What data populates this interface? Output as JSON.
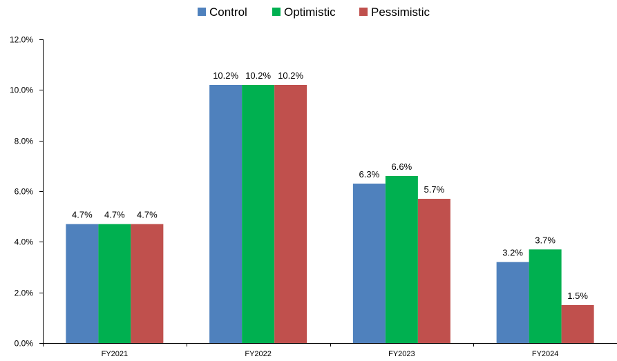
{
  "chart_data": {
    "type": "bar",
    "categories": [
      "FY2021",
      "FY2022",
      "FY2023",
      "FY2024"
    ],
    "series": [
      {
        "name": "Control",
        "color": "#4F81BD",
        "values": [
          4.7,
          10.2,
          6.3,
          3.2
        ],
        "labels": [
          "4.7%",
          "10.2%",
          "6.3%",
          "3.2%"
        ]
      },
      {
        "name": "Optimistic",
        "color": "#00B050",
        "values": [
          4.7,
          10.2,
          6.6,
          3.7
        ],
        "labels": [
          "4.7%",
          "10.2%",
          "6.6%",
          "3.7%"
        ]
      },
      {
        "name": "Pessimistic",
        "color": "#C0504D",
        "values": [
          4.7,
          10.2,
          5.7,
          1.5
        ],
        "labels": [
          "4.7%",
          "10.2%",
          "5.7%",
          "1.5%"
        ]
      }
    ],
    "ylim": [
      0,
      12
    ],
    "yticks": [
      0,
      2,
      4,
      6,
      8,
      10,
      12
    ],
    "ytick_labels": [
      "0.0%",
      "2.0%",
      "4.0%",
      "6.0%",
      "8.0%",
      "10.0%",
      "12.0%"
    ],
    "legend_position": "top-center",
    "grid": false,
    "title": "",
    "xlabel": "",
    "ylabel": ""
  }
}
